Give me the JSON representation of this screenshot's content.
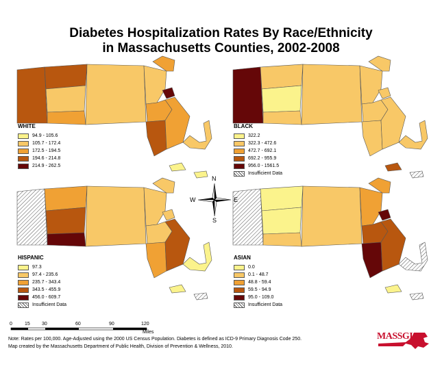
{
  "title_line1": "Diabetes Hospitalization Rates By Race/Ethnicity",
  "title_line2": "in Massachusetts Counties, 2002-2008",
  "palette": {
    "c1": "#fbf38c",
    "c2": "#f8c867",
    "c3": "#f0a134",
    "c4": "#b8570f",
    "c5": "#650708",
    "outline": "#555555"
  },
  "maps": [
    {
      "group": "WHITE",
      "legend": [
        "94.9 - 105.6",
        "105.7 - 172.4",
        "172.5 - 194.5",
        "194.6 - 214.8",
        "214.9 - 262.5"
      ],
      "has_insufficient": false
    },
    {
      "group": "BLACK",
      "legend": [
        "322.2",
        "322.3 - 472.6",
        "472.7 - 692.1",
        "692.2 - 955.9",
        "956.0 - 1561.5"
      ],
      "has_insufficient": true
    },
    {
      "group": "HISPANIC",
      "legend": [
        "97.3",
        "97.4 - 235.6",
        "235.7 - 343.4",
        "343.5 - 455.9",
        "456.0 - 609.7"
      ],
      "has_insufficient": true
    },
    {
      "group": "ASIAN",
      "legend": [
        "0.0",
        "0.1 - 48.7",
        "48.8 - 59.4",
        "59.5 - 94.9",
        "95.0 - 109.0"
      ],
      "has_insufficient": true
    }
  ],
  "insufficient_label": "Insufficient Data",
  "compass": {
    "n": "N",
    "s": "S",
    "e": "E",
    "w": "W"
  },
  "scale": {
    "ticks": [
      "0",
      "15",
      "30",
      "60",
      "90",
      "120"
    ],
    "unit": "Miles"
  },
  "note1": "Note: Rates per 100,000. Age-Adjusted using the 2000 US Census Population. Diabetes is defined as ICD-9 Primary Diagnosis Code 250.",
  "note2": "Map created by the Massachusetts Department of Public Health, Division of Prevention & Wellness, 2010.",
  "logo_text": "MASSGIS"
}
